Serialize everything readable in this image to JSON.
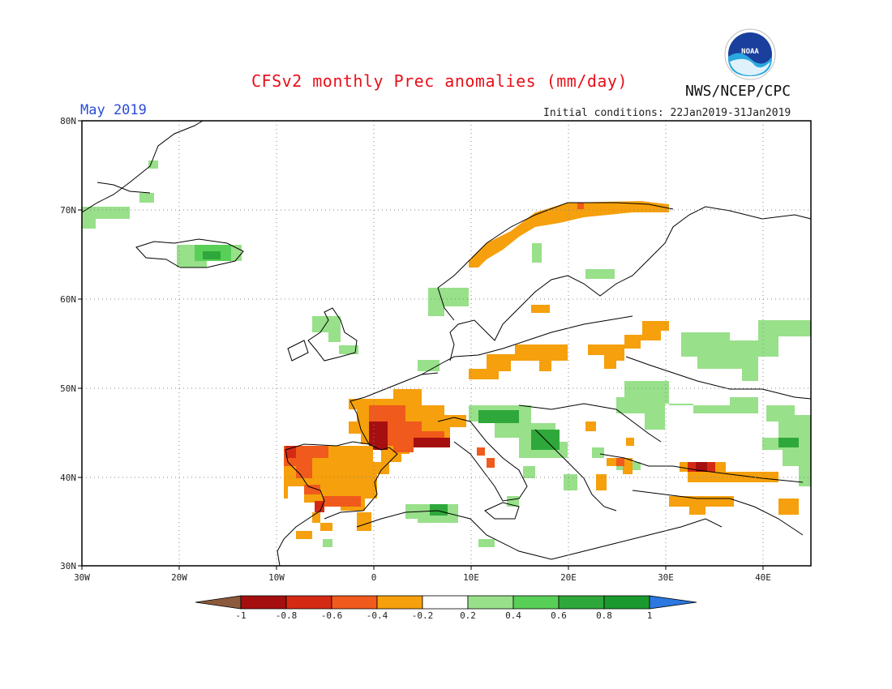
{
  "header": {
    "title": "CFSv2 monthly Prec anomalies (mm/day)",
    "agency": "NWS/NCEP/CPC",
    "period": "May 2019",
    "initial_conditions": "Initial conditions: 22Jan2019-31Jan2019"
  },
  "logo": {
    "text": "NOAA"
  },
  "axes": {
    "lat_labels": [
      "80N",
      "70N",
      "60N",
      "50N",
      "40N",
      "30N"
    ],
    "lon_labels": [
      "30W",
      "20W",
      "10W",
      "0",
      "10E",
      "20E",
      "30E",
      "40E"
    ]
  },
  "colorbar": {
    "ticks": [
      "-1",
      "-0.8",
      "-0.6",
      "-0.4",
      "-0.2",
      "0.2",
      "0.4",
      "0.6",
      "0.8",
      "1"
    ],
    "colors": {
      "lt_-1": "#8b5a3c",
      "-1_-0.8": "#a50f0f",
      "-0.8_-0.6": "#d42a14",
      "-0.6_-0.4": "#f05a1c",
      "-0.4_-0.2": "#f5a00c",
      "-0.2_0.2": "#ffffff",
      "0.2_0.4": "#98e08a",
      "0.4_0.6": "#58d058",
      "0.6_0.8": "#2ea83a",
      "0.8_1": "#1a9a2e",
      "gt_1": "#2a78e0"
    }
  }
}
